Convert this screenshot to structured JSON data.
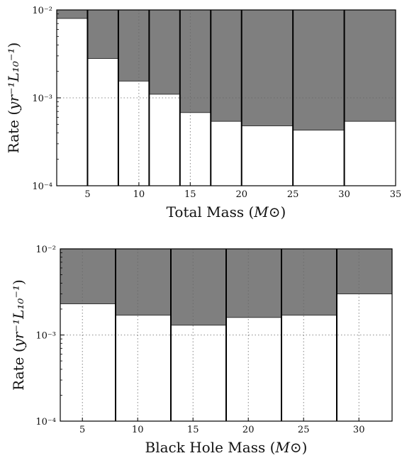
{
  "chart_data": [
    {
      "type": "bar",
      "subtype": "stepped-histogram-upper-limits",
      "xlabel": "Total Mass (M⊙)",
      "ylabel": "Rate (yr⁻¹L₁₀⁻¹)",
      "yscale": "log",
      "xlim": [
        2,
        35
      ],
      "ylim": [
        0.0001,
        0.01
      ],
      "bins": [
        [
          2,
          5
        ],
        [
          5,
          8
        ],
        [
          8,
          11
        ],
        [
          11,
          14
        ],
        [
          14,
          17
        ],
        [
          17,
          20
        ],
        [
          20,
          25
        ],
        [
          25,
          30
        ],
        [
          30,
          35
        ]
      ],
      "values": [
        0.008,
        0.0028,
        0.00155,
        0.0011,
        0.00068,
        0.00054,
        0.00048,
        0.00043,
        0.00054
      ],
      "xticks": [
        5,
        10,
        15,
        20,
        25,
        30,
        35
      ],
      "yticks": [
        0.0001,
        0.001,
        0.01
      ],
      "xtick_labels": [
        "5",
        "10",
        "15",
        "20",
        "25",
        "30",
        "35"
      ],
      "ytick_labels": [
        "10⁻⁴",
        "10⁻³",
        "10⁻²"
      ],
      "grid": true,
      "colors": {
        "excluded": "#7f7f7f",
        "allowed": "#ffffff",
        "edge": "#000000"
      }
    },
    {
      "type": "bar",
      "subtype": "stepped-histogram-upper-limits",
      "xlabel": "Black Hole Mass (M⊙)",
      "ylabel": "Rate (yr⁻¹L₁₀⁻¹)",
      "yscale": "log",
      "xlim": [
        3,
        33
      ],
      "ylim": [
        0.0001,
        0.01
      ],
      "bins": [
        [
          3,
          8
        ],
        [
          8,
          13
        ],
        [
          13,
          18
        ],
        [
          18,
          23
        ],
        [
          23,
          28
        ],
        [
          28,
          33
        ]
      ],
      "values": [
        0.0023,
        0.0017,
        0.0013,
        0.0016,
        0.0017,
        0.003
      ],
      "xticks": [
        5,
        10,
        15,
        20,
        25,
        30
      ],
      "yticks": [
        0.0001,
        0.001,
        0.01
      ],
      "xtick_labels": [
        "5",
        "10",
        "15",
        "20",
        "25",
        "30"
      ],
      "ytick_labels": [
        "10⁻⁴",
        "10⁻³",
        "10⁻²"
      ],
      "grid": true,
      "colors": {
        "excluded": "#7f7f7f",
        "allowed": "#ffffff",
        "edge": "#000000"
      }
    }
  ]
}
